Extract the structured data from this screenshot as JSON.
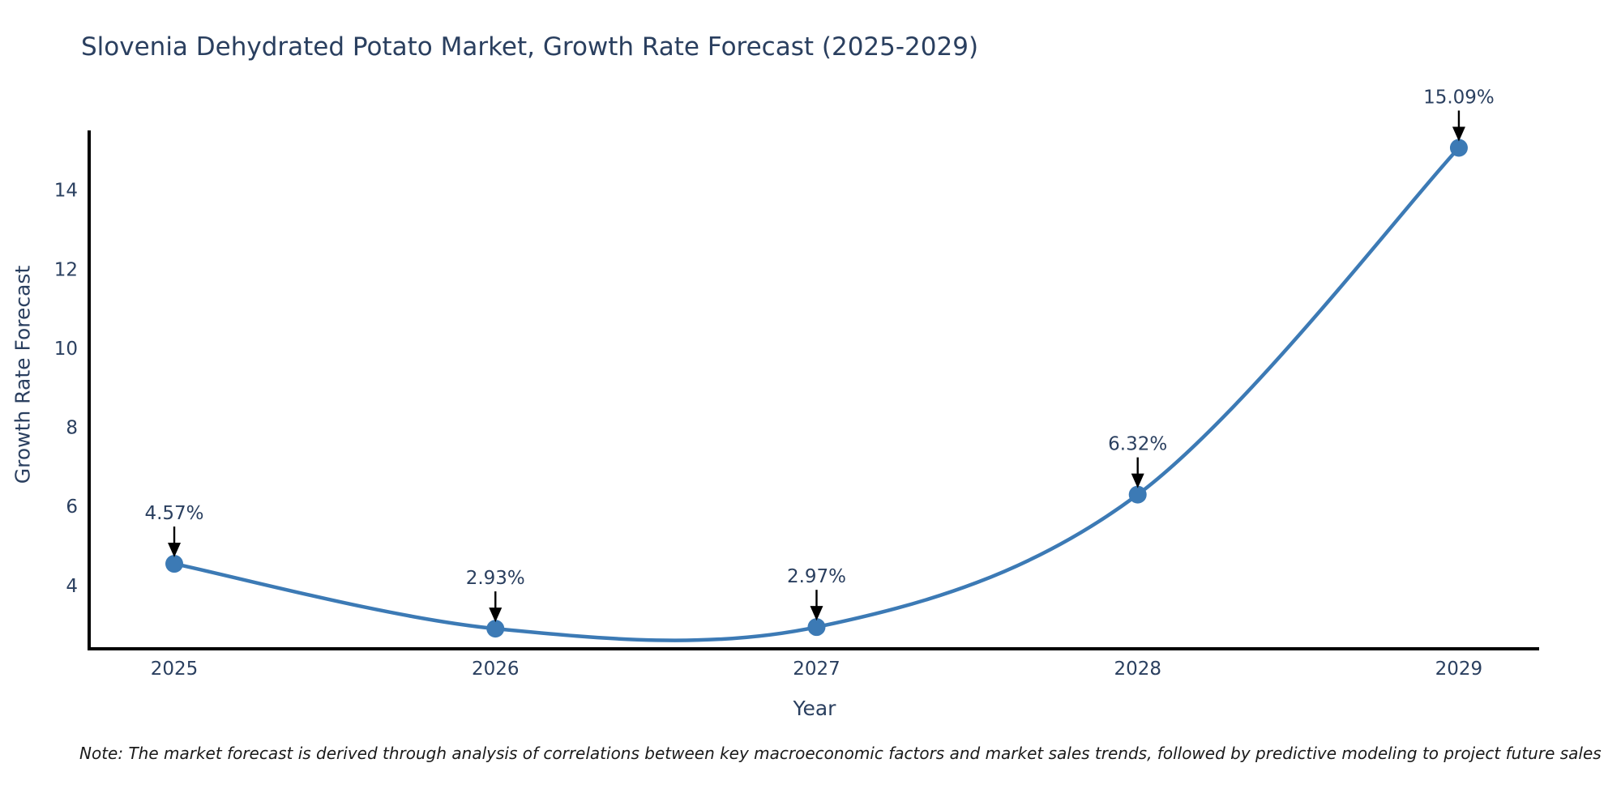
{
  "chart_data": {
    "type": "line",
    "title": "Slovenia Dehydrated Potato Market, Growth Rate Forecast (2025-2029)",
    "xlabel": "Year",
    "ylabel": "Growth Rate Forecast",
    "x": [
      2025,
      2026,
      2027,
      2028,
      2029
    ],
    "series": [
      {
        "name": "Growth Rate Forecast",
        "values": [
          4.57,
          2.93,
          2.97,
          6.32,
          15.09
        ]
      }
    ],
    "point_labels": [
      "4.57%",
      "2.93%",
      "2.97%",
      "6.32%",
      "15.09%"
    ],
    "x_tick_labels": [
      "2025",
      "2026",
      "2027",
      "2028",
      "2029"
    ],
    "y_ticks": [
      4,
      6,
      8,
      10,
      12,
      14
    ],
    "x_range": [
      2024.74,
      2029.25
    ],
    "y_range": [
      2.42,
      15.53
    ],
    "line_shape": "spline",
    "grid": false,
    "legend_position": "none",
    "line_color": "#3c7ab5",
    "marker_color": "#3c7ab5",
    "axis_color": "#000000",
    "arrow_color": "#000000",
    "text_color": "#2a3f5f"
  },
  "note": "Note: The market forecast is derived through analysis of correlations between key macroeconomic factors and market sales trends, followed by predictive modeling to project future sales"
}
